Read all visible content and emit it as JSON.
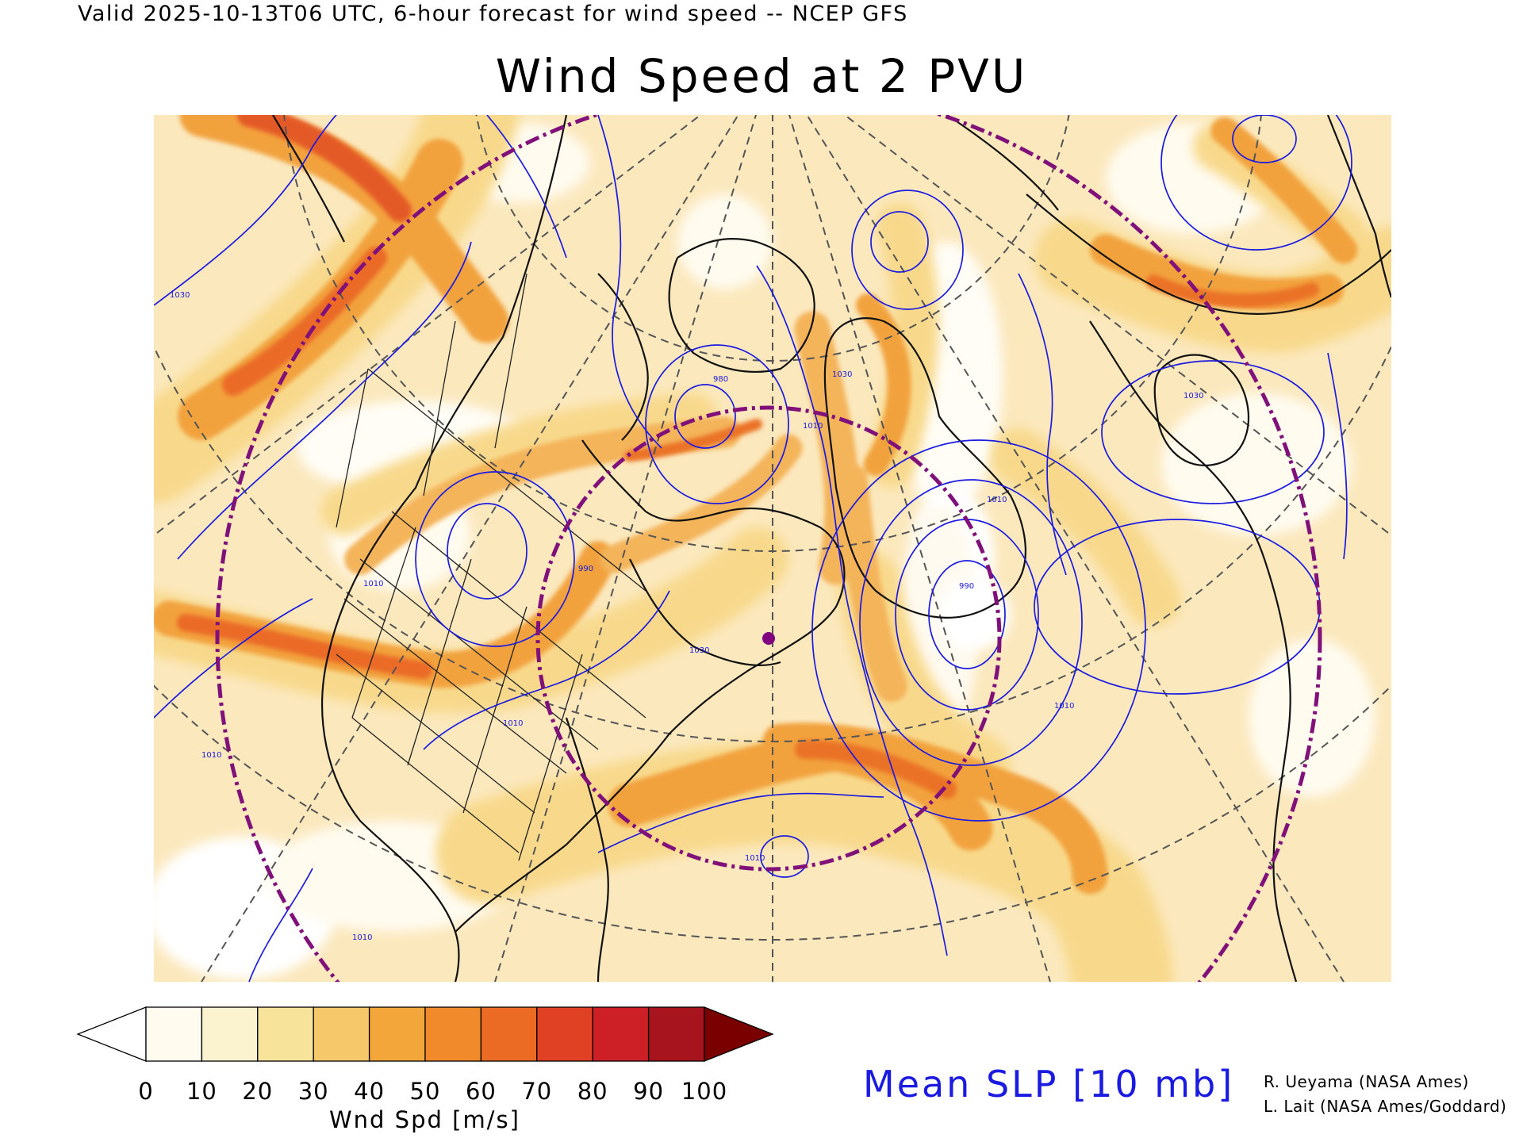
{
  "header": {
    "valid_line": "Valid 2025-10-13T06 UTC, 6-hour forecast for wind speed -- NCEP GFS",
    "title": "Wind Speed at 2 PVU"
  },
  "map": {
    "field": "Wind speed at 2 PVU",
    "contours": "Mean SLP",
    "contour_labels": [
      "990",
      "1010",
      "1010",
      "1010",
      "1030",
      "1030",
      "980",
      "1010",
      "990",
      "1010",
      "1030",
      "1030",
      "1010",
      "1010",
      "1010"
    ],
    "marker_color": "#800080"
  },
  "colorbar": {
    "tick_labels": [
      "0",
      "10",
      "20",
      "30",
      "40",
      "50",
      "60",
      "70",
      "80",
      "90",
      "100"
    ],
    "label": "Wnd Spd [m/s]",
    "colors": [
      "#ffffff",
      "#fffbef",
      "#fbf2cf",
      "#f8e39b",
      "#f6c86a",
      "#f3a73a",
      "#f08a2a",
      "#eb6a24",
      "#e04124",
      "#cc1f26",
      "#a8141e",
      "#7a0000"
    ]
  },
  "slp_legend": {
    "label": "Mean SLP [10 mb]",
    "color": "#1a1ae0"
  },
  "credits": [
    "R. Ueyama (NASA Ames)",
    "L. Lait (NASA Ames/Goddard)"
  ]
}
